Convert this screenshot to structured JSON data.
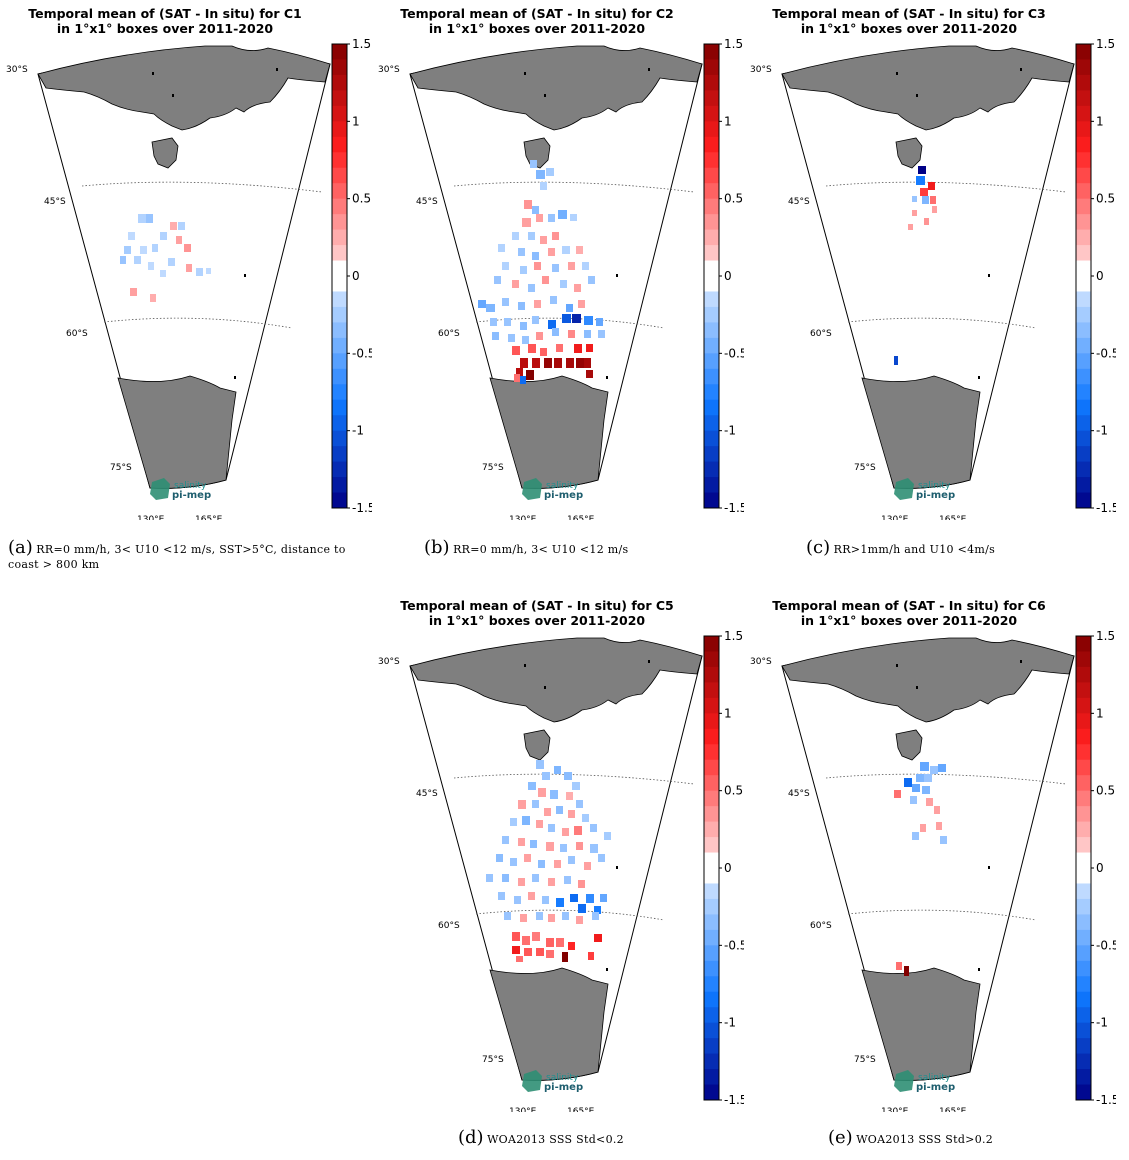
{
  "colorbar": {
    "ticks": [
      "1.5",
      "1",
      "0.5",
      "0",
      "-0.5",
      "-1",
      "-1.5"
    ],
    "tick_values": [
      1.5,
      1,
      0.5,
      0,
      -0.5,
      -1,
      -1.5
    ]
  },
  "map_labels": {
    "lat": [
      "30°S",
      "45°S",
      "60°S",
      "75°S"
    ],
    "lon": [
      "130°E",
      "165°E"
    ]
  },
  "logo": {
    "line1": "salinity",
    "line2": "pi-mep"
  },
  "panels": [
    {
      "id": "a",
      "title_line1": "Temporal mean of (SAT - In situ) for C1",
      "title_line2": "in 1°x1° boxes over 2011-2020",
      "caption_label": "(a)",
      "caption_text": "RR=0 mm/h, 3< U10 <12 m/s, SST>5°C, distance to coast > 800 km"
    },
    {
      "id": "b",
      "title_line1": "Temporal mean of (SAT - In situ) for C2",
      "title_line2": "in 1°x1° boxes over 2011-2020",
      "caption_label": "(b)",
      "caption_text": "RR=0 mm/h, 3< U10 <12 m/s"
    },
    {
      "id": "c",
      "title_line1": "Temporal mean of (SAT - In situ) for C3",
      "title_line2": "in 1°x1° boxes over 2011-2020",
      "caption_label": "(c)",
      "caption_text": "RR>1mm/h and U10 <4m/s"
    },
    {
      "id": "d",
      "title_line1": "Temporal mean of (SAT - In situ) for C5",
      "title_line2": "in 1°x1° boxes over 2011-2020",
      "caption_label": "(d)",
      "caption_text": "WOA2013 SSS Std<0.2"
    },
    {
      "id": "e",
      "title_line1": "Temporal mean of (SAT - In situ) for C6",
      "title_line2": "in 1°x1° boxes over 2011-2020",
      "caption_label": "(e)",
      "caption_text": "WOA2013 SSS Std>0.2"
    }
  ]
}
